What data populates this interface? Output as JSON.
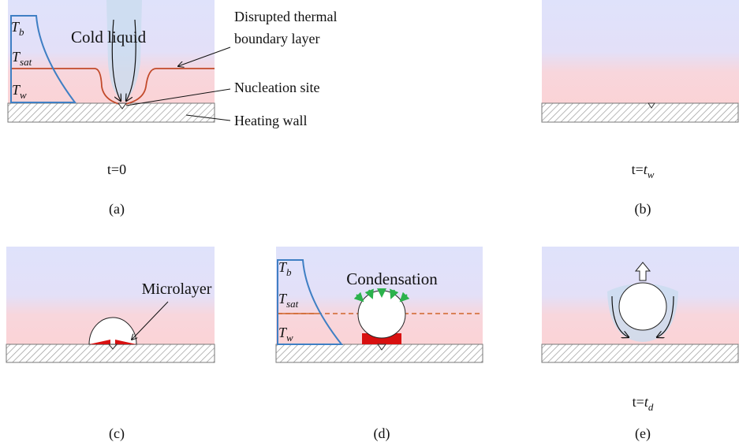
{
  "panel_a": {
    "temperatures": [
      {
        "symbol": "T",
        "subscript": "b"
      },
      {
        "symbol": "T",
        "subscript": "sat"
      },
      {
        "symbol": "T",
        "subscript": "w"
      }
    ],
    "cold_liquid": "Cold liquid",
    "boundary_layer": [
      "Disrupted thermal",
      "boundary layer"
    ],
    "nucleation_site": "Nucleation site",
    "heating_wall": "Heating wall",
    "time": "t=0",
    "caption": "(a)"
  },
  "panel_b": {
    "time": {
      "lead": "t=",
      "symbol": "t",
      "subscript": "w"
    },
    "caption": "(b)"
  },
  "panel_c": {
    "microlayer": "Microlayer",
    "caption": "(c)"
  },
  "panel_d": {
    "temperatures": [
      {
        "symbol": "T",
        "subscript": "b"
      },
      {
        "symbol": "T",
        "subscript": "sat"
      },
      {
        "symbol": "T",
        "subscript": "w"
      }
    ],
    "condensation": "Condensation",
    "caption": "(d)"
  },
  "panel_e": {
    "time": {
      "lead": "t=",
      "symbol": "t",
      "subscript": "d"
    },
    "caption": "(e)"
  }
}
